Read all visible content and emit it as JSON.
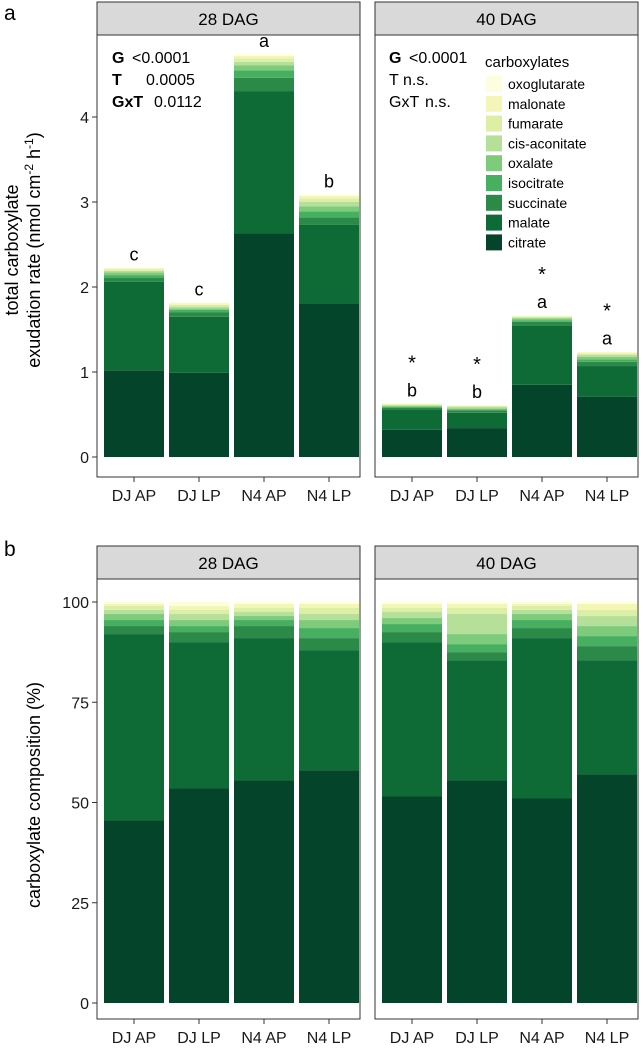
{
  "figure": {
    "panel_a_letter": "a",
    "panel_b_letter": "b"
  },
  "legend": {
    "title": "carboxylates",
    "entries": [
      "oxoglutarate",
      "malonate",
      "fumarate",
      "cis-aconitate",
      "oxalate",
      "isocitrate",
      "succinate",
      "malate",
      "citrate"
    ],
    "colors": {
      "oxoglutarate": "#fdfde0",
      "malonate": "#f4f6b8",
      "fumarate": "#dcefa4",
      "cis-aconitate": "#b6e09a",
      "oxalate": "#7ecb7c",
      "isocitrate": "#47b060",
      "succinate": "#2b8a48",
      "malate": "#0e6b35",
      "citrate": "#04442a"
    }
  },
  "chart_data": [
    {
      "type": "bar",
      "stacked": true,
      "panel": "a",
      "facets": [
        "28 DAG",
        "40 DAG"
      ],
      "categories": [
        "DJ AP",
        "DJ LP",
        "N4 AP",
        "N4 LP"
      ],
      "ylabel_line1": "total carboxylate",
      "ylabel_line2": "exudation rate (nmol cm",
      "ylabel_sup1": "-2",
      "ylabel_mid": " h",
      "ylabel_sup2": "-1",
      "ylabel_end": ")",
      "ylim": [
        0,
        5.05
      ],
      "yticks": [
        0,
        1,
        2,
        3,
        4
      ],
      "stats": {
        "28 DAG": [
          {
            "label": "G",
            "value": "<0.0001",
            "bold": true
          },
          {
            "label": "T",
            "value": "0.0005",
            "bold": true
          },
          {
            "label": "GxT",
            "value": "0.0112",
            "bold": true
          }
        ],
        "40 DAG": [
          {
            "label": "G",
            "value": "<0.0001",
            "bold": true
          },
          {
            "label": "T",
            "value": "n.s.",
            "bold": false
          },
          {
            "label": "GxT",
            "value": "n.s.",
            "bold": false
          }
        ]
      },
      "letters": {
        "28 DAG": [
          "c",
          "c",
          "a",
          "b"
        ],
        "40 DAG": [
          "b",
          "b",
          "a",
          "a"
        ]
      },
      "asterisk": "*",
      "series": {
        "28 DAG": [
          {
            "name": "citrate",
            "values": [
              1.02,
              0.99,
              2.63,
              1.8
            ]
          },
          {
            "name": "malate",
            "values": [
              1.04,
              0.66,
              1.67,
              0.93
            ]
          },
          {
            "name": "succinate",
            "values": [
              0.05,
              0.05,
              0.16,
              0.09
            ]
          },
          {
            "name": "isocitrate",
            "values": [
              0.03,
              0.03,
              0.09,
              0.07
            ]
          },
          {
            "name": "oxalate",
            "values": [
              0.03,
              0.02,
              0.06,
              0.06
            ]
          },
          {
            "name": "cis-aconitate",
            "values": [
              0.02,
              0.02,
              0.04,
              0.05
            ]
          },
          {
            "name": "fumarate",
            "values": [
              0.02,
              0.02,
              0.04,
              0.04
            ]
          },
          {
            "name": "malonate",
            "values": [
              0.01,
              0.02,
              0.03,
              0.03
            ]
          },
          {
            "name": "oxoglutarate",
            "values": [
              0.01,
              0.01,
              0.02,
              0.02
            ]
          }
        ],
        "40 DAG": [
          {
            "name": "citrate",
            "values": [
              0.32,
              0.34,
              0.85,
              0.71
            ]
          },
          {
            "name": "malate",
            "values": [
              0.24,
              0.18,
              0.7,
              0.36
            ]
          },
          {
            "name": "succinate",
            "values": [
              0.02,
              0.03,
              0.04,
              0.05
            ]
          },
          {
            "name": "isocitrate",
            "values": [
              0.01,
              0.01,
              0.02,
              0.03
            ]
          },
          {
            "name": "oxalate",
            "values": [
              0.01,
              0.01,
              0.02,
              0.03
            ]
          },
          {
            "name": "cis-aconitate",
            "values": [
              0.01,
              0.02,
              0.01,
              0.02
            ]
          },
          {
            "name": "fumarate",
            "values": [
              0.01,
              0.01,
              0.01,
              0.02
            ]
          },
          {
            "name": "malonate",
            "values": [
              0.005,
              0.005,
              0.01,
              0.01
            ]
          },
          {
            "name": "oxoglutarate",
            "values": [
              0.005,
              0.005,
              0.01,
              0.01
            ]
          }
        ]
      }
    },
    {
      "type": "bar",
      "stacked": true,
      "panel": "b",
      "facets": [
        "28 DAG",
        "40 DAG"
      ],
      "categories": [
        "DJ AP",
        "DJ LP",
        "N4 AP",
        "N4 LP"
      ],
      "ylabel": "carboxylate composition (%)",
      "ylim": [
        0,
        107.5
      ],
      "yticks": [
        0,
        25,
        50,
        75,
        100
      ],
      "series": {
        "28 DAG": [
          {
            "name": "citrate",
            "values": [
              45.5,
              53.5,
              55.5,
              58.0
            ]
          },
          {
            "name": "malate",
            "values": [
              46.5,
              36.5,
              35.5,
              30.0
            ]
          },
          {
            "name": "succinate",
            "values": [
              2.0,
              2.5,
              3.0,
              3.0
            ]
          },
          {
            "name": "isocitrate",
            "values": [
              1.5,
              1.5,
              1.5,
              2.5
            ]
          },
          {
            "name": "oxalate",
            "values": [
              1.5,
              1.5,
              1.0,
              2.0
            ]
          },
          {
            "name": "cis-aconitate",
            "values": [
              1.0,
              1.5,
              1.0,
              1.5
            ]
          },
          {
            "name": "fumarate",
            "values": [
              1.0,
              1.0,
              1.0,
              1.5
            ]
          },
          {
            "name": "malonate",
            "values": [
              0.5,
              1.0,
              1.0,
              1.0
            ]
          },
          {
            "name": "oxoglutarate",
            "values": [
              0.5,
              1.0,
              0.5,
              0.5
            ]
          }
        ],
        "40 DAG": [
          {
            "name": "citrate",
            "values": [
              51.5,
              55.5,
              51.0,
              57.0
            ]
          },
          {
            "name": "malate",
            "values": [
              38.5,
              30.0,
              40.0,
              28.5
            ]
          },
          {
            "name": "succinate",
            "values": [
              2.5,
              2.0,
              2.5,
              3.5
            ]
          },
          {
            "name": "isocitrate",
            "values": [
              2.0,
              2.0,
              2.0,
              2.5
            ]
          },
          {
            "name": "oxalate",
            "values": [
              1.5,
              2.5,
              1.5,
              2.5
            ]
          },
          {
            "name": "cis-aconitate",
            "values": [
              1.5,
              5.0,
              1.0,
              2.5
            ]
          },
          {
            "name": "fumarate",
            "values": [
              1.0,
              1.5,
              1.0,
              1.5
            ]
          },
          {
            "name": "malonate",
            "values": [
              1.0,
              1.0,
              0.5,
              1.5
            ]
          },
          {
            "name": "oxoglutarate",
            "values": [
              0.5,
              0.5,
              0.5,
              0.5
            ]
          }
        ]
      }
    }
  ]
}
